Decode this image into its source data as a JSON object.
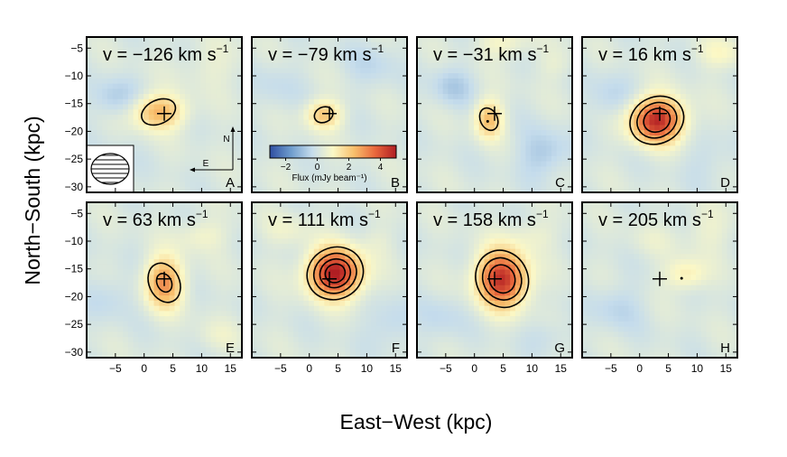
{
  "chart_data": {
    "type": "heatmap",
    "title": "",
    "xlabel": "East−West (kpc)",
    "ylabel": "North−South (kpc)",
    "xlim": [
      -10,
      17
    ],
    "ylim": [
      -31,
      -3
    ],
    "xticks": [
      -5,
      0,
      5,
      10,
      15
    ],
    "yticks": [
      -5,
      -10,
      -15,
      -20,
      -25,
      -30
    ],
    "xtick_labels": [
      "−5",
      "0",
      "5",
      "10",
      "15"
    ],
    "ytick_labels": [
      "−5",
      "−10",
      "−15",
      "−20",
      "−25",
      "−30"
    ],
    "velocity_unit": "km s",
    "velocity_exponent": "−1",
    "colorbar": {
      "label": "Flux (mJy beam⁻¹)",
      "range": [
        -3,
        5
      ],
      "ticks": [
        -2,
        0,
        2,
        4
      ],
      "tick_labels": [
        "−2",
        "0",
        "2",
        "4"
      ],
      "colors": [
        "#2f4fa2",
        "#6e9ccd",
        "#c5dcec",
        "#fbf8c6",
        "#f8bf6c",
        "#e8673c",
        "#b01e23"
      ]
    },
    "compass": {
      "north": "N",
      "east": "E"
    },
    "cross_position": [
      3.5,
      -16.8
    ],
    "panels": [
      {
        "id": "A",
        "velocity": "v = −126 km s",
        "peak": [
          2.5,
          -16.5
        ],
        "sigma": [
          3.2,
          2.2
        ],
        "amp": 2.4,
        "blobs": [
          {
            "x": -5,
            "y": -14,
            "sx": 3,
            "sy": 2.5,
            "a": -0.8
          },
          {
            "x": 12,
            "y": -8,
            "sx": 4,
            "sy": 3,
            "a": 0.4
          },
          {
            "x": -7,
            "y": -27,
            "sx": 3,
            "sy": 3,
            "a": -0.5
          }
        ],
        "contours": [
          1.5
        ],
        "beam": true,
        "compass_shown": true,
        "dot": null
      },
      {
        "id": "B",
        "velocity": "v = −79 km s",
        "peak": [
          2.5,
          -17
        ],
        "sigma": [
          2.2,
          1.8
        ],
        "amp": 2.0,
        "blobs": [
          {
            "x": 11,
            "y": -8,
            "sx": 3,
            "sy": 3,
            "a": -0.5
          },
          {
            "x": -6,
            "y": -12,
            "sx": 3,
            "sy": 3,
            "a": -0.4
          }
        ],
        "contours": [
          1.5
        ],
        "colorbar_shown": true,
        "dot": null
      },
      {
        "id": "C",
        "velocity": "v = −31 km s",
        "peak": [
          2.5,
          -17.8
        ],
        "sigma": [
          1.7,
          2.4
        ],
        "amp": 2.2,
        "blobs": [
          {
            "x": 5,
            "y": -4,
            "sx": 3,
            "sy": 2,
            "a": 0.8
          },
          {
            "x": -4,
            "y": -12,
            "sx": 2.5,
            "sy": 2.5,
            "a": -0.8
          },
          {
            "x": 12,
            "y": -24,
            "sx": 3,
            "sy": 3,
            "a": -0.9
          },
          {
            "x": 14,
            "y": -8,
            "sx": 2,
            "sy": 2,
            "a": 0.4
          }
        ],
        "contours": [
          1.5
        ],
        "dot": [
          2.3,
          -18.2
        ]
      },
      {
        "id": "D",
        "velocity": "v = 16 km s",
        "peak": [
          3,
          -18
        ],
        "sigma": [
          3.2,
          2.8
        ],
        "amp": 4.6,
        "blobs": [
          {
            "x": 14,
            "y": -6,
            "sx": 3,
            "sy": 2,
            "a": 0.8
          },
          {
            "x": -5,
            "y": -14,
            "sx": 3,
            "sy": 3,
            "a": -0.6
          },
          {
            "x": 12,
            "y": -25,
            "sx": 3,
            "sy": 3,
            "a": -0.4
          }
        ],
        "contours": [
          1.5,
          2.5,
          3.5
        ],
        "dot": null
      },
      {
        "id": "E",
        "velocity": "v = 63 km s",
        "peak": [
          3.5,
          -17.5
        ],
        "sigma": [
          2.3,
          3.2
        ],
        "amp": 2.9,
        "blobs": [
          {
            "x": 10,
            "y": -9,
            "sx": 3,
            "sy": 2,
            "a": 0.7
          },
          {
            "x": -6,
            "y": -20,
            "sx": 3,
            "sy": 3,
            "a": -0.5
          },
          {
            "x": 13,
            "y": -27,
            "sx": 3,
            "sy": 2,
            "a": 0.4
          }
        ],
        "contours": [
          1.5,
          2.5
        ],
        "dot": null
      },
      {
        "id": "F",
        "velocity": "v = 111 km s",
        "peak": [
          4.5,
          -15.8
        ],
        "sigma": [
          3.2,
          3.0
        ],
        "amp": 5.0,
        "blobs": [
          {
            "x": -4,
            "y": -8,
            "sx": 3,
            "sy": 2,
            "a": 0.5
          },
          {
            "x": 14,
            "y": -25,
            "sx": 3,
            "sy": 3,
            "a": -0.6
          },
          {
            "x": 12,
            "y": -10,
            "sx": 2,
            "sy": 2,
            "a": 0.3
          }
        ],
        "contours": [
          1.5,
          2.5,
          3.5,
          4.3
        ],
        "dot": null
      },
      {
        "id": "G",
        "velocity": "v = 158 km s",
        "peak": [
          4.8,
          -16.8
        ],
        "sigma": [
          3.0,
          3.5
        ],
        "amp": 4.6,
        "blobs": [
          {
            "x": 10,
            "y": -9,
            "sx": 3,
            "sy": 2,
            "a": 0.5
          },
          {
            "x": -6,
            "y": -24,
            "sx": 3,
            "sy": 3,
            "a": -0.5
          },
          {
            "x": 13,
            "y": -27,
            "sx": 3,
            "sy": 2,
            "a": -0.4
          }
        ],
        "contours": [
          1.5,
          2.5,
          3.5
        ],
        "dot": null
      },
      {
        "id": "H",
        "velocity": "v = 205 km s",
        "peak": [
          8,
          -16
        ],
        "sigma": [
          2.5,
          2.0
        ],
        "amp": 1.2,
        "blobs": [
          {
            "x": 12,
            "y": -8,
            "sx": 3,
            "sy": 3,
            "a": 0.5
          },
          {
            "x": -4,
            "y": -22,
            "sx": 3,
            "sy": 3,
            "a": -0.6
          },
          {
            "x": 2,
            "y": -10,
            "sx": 3,
            "sy": 2,
            "a": 0.3
          }
        ],
        "contours": [],
        "dot": [
          7.3,
          -16.7
        ]
      }
    ]
  }
}
